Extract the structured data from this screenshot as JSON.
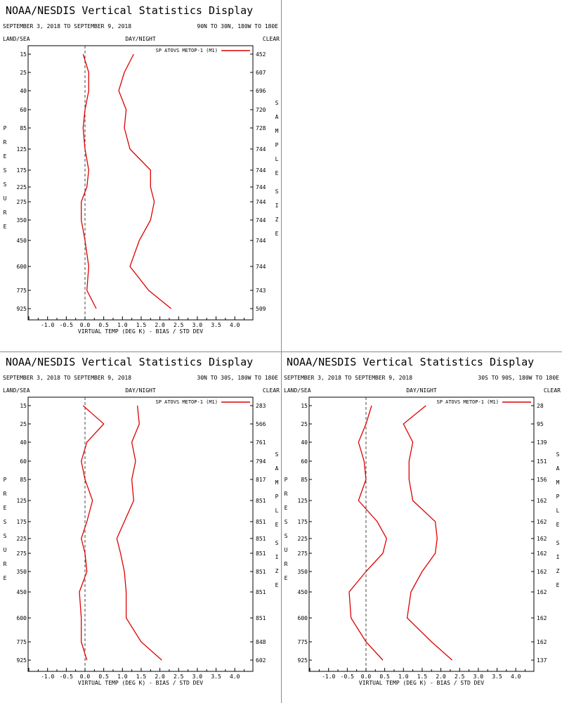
{
  "panels": [
    {
      "id": "nh",
      "title": "NOAA/NESDIS Vertical Statistics Display",
      "date_range": "SEPTEMBER 3, 2018 TO SEPTEMBER 9, 2018",
      "region": "90N TO 30N, 180W TO 180E",
      "land_sea": "LAND/SEA",
      "day_night": "DAY/NIGHT",
      "clear": "CLEAR",
      "y_axis_title": "PRESSURE",
      "right_axis_title_1": "SAMPLE",
      "right_axis_title_2": "SIZE"
    },
    {
      "id": "tr",
      "title": "NOAA/NESDIS Vertical Statistics Display",
      "date_range": "SEPTEMBER 3, 2018 TO SEPTEMBER 9, 2018",
      "region": "30N TO 30S, 180W TO 180E",
      "land_sea": "LAND/SEA",
      "day_night": "DAY/NIGHT",
      "clear": "CLEAR",
      "y_axis_title": "PRESSURE",
      "right_axis_title_1": "SAMPLE",
      "right_axis_title_2": "SIZE"
    },
    {
      "id": "sh",
      "title": "NOAA/NESDIS Vertical Statistics Display",
      "date_range": "SEPTEMBER 3, 2018 TO SEPTEMBER 9, 2018",
      "region": "30S TO 90S, 180W TO 180E",
      "land_sea": "LAND/SEA",
      "day_night": "DAY/NIGHT",
      "clear": "CLEAR",
      "y_axis_title": "PRESSURE",
      "right_axis_title_1": "SAMPLE",
      "right_axis_title_2": "SIZE"
    }
  ],
  "chart_data": [
    {
      "type": "line",
      "xlabel": "VIRTUAL TEMP (DEG K) - BIAS / STD DEV",
      "ylabel": "PRESSURE",
      "xlim": [
        -1.5,
        4.5
      ],
      "x_ticks": [
        "-1.0",
        "-0.5",
        "0.0",
        "0.5",
        "1.0",
        "1.5",
        "2.0",
        "2.5",
        "3.0",
        "3.5",
        "4.0"
      ],
      "pressure_levels": [
        "15",
        "25",
        "40",
        "60",
        "85",
        "125",
        "175",
        "225",
        "275",
        "350",
        "450",
        "600",
        "775",
        "925"
      ],
      "sample_size": [
        "452",
        "607",
        "696",
        "720",
        "728",
        "744",
        "744",
        "744",
        "744",
        "744",
        "744",
        "744",
        "743",
        "509"
      ],
      "legend": "SP ATOVS METOP-1 (M1)",
      "grid": false,
      "line_color": "#dd0000",
      "series": [
        {
          "name": "SP ATOVS METOP-1 (M1)",
          "values": [
            -0.05,
            0.1,
            0.1,
            0.0,
            -0.05,
            0.0,
            0.1,
            0.05,
            -0.1,
            -0.1,
            0.0,
            0.1,
            0.05,
            0.3
          ]
        },
        {
          "values": [
            1.3,
            1.05,
            0.9,
            1.1,
            1.05,
            1.2,
            1.75,
            1.75,
            1.85,
            1.75,
            1.45,
            1.2,
            1.7,
            2.3
          ]
        }
      ]
    },
    {
      "type": "line",
      "xlabel": "VIRTUAL TEMP (DEG K) - BIAS / STD DEV",
      "ylabel": "PRESSURE",
      "xlim": [
        -1.5,
        4.5
      ],
      "x_ticks": [
        "-1.0",
        "-0.5",
        "0.0",
        "0.5",
        "1.0",
        "1.5",
        "2.0",
        "2.5",
        "3.0",
        "3.5",
        "4.0"
      ],
      "pressure_levels": [
        "15",
        "25",
        "40",
        "60",
        "85",
        "125",
        "175",
        "225",
        "275",
        "350",
        "450",
        "600",
        "775",
        "925"
      ],
      "sample_size": [
        "283",
        "566",
        "761",
        "794",
        "817",
        "851",
        "851",
        "851",
        "851",
        "851",
        "851",
        "851",
        "848",
        "602"
      ],
      "legend": "SP ATOVS METOP-1 (M1)",
      "grid": false,
      "line_color": "#dd0000",
      "series": [
        {
          "name": "SP ATOVS METOP-1 (M1)",
          "values": [
            -0.05,
            0.5,
            0.05,
            -0.1,
            0.0,
            0.2,
            0.05,
            -0.1,
            0.0,
            0.05,
            -0.15,
            -0.1,
            -0.1,
            0.05
          ]
        },
        {
          "values": [
            1.4,
            1.45,
            1.25,
            1.35,
            1.25,
            1.3,
            1.05,
            0.85,
            0.95,
            1.05,
            1.1,
            1.1,
            1.5,
            2.05
          ]
        }
      ]
    },
    {
      "type": "line",
      "xlabel": "VIRTUAL TEMP (DEG K) - BIAS / STD DEV",
      "ylabel": "PRESSURE",
      "xlim": [
        -1.5,
        4.5
      ],
      "x_ticks": [
        "-1.0",
        "-0.5",
        "0.0",
        "0.5",
        "1.0",
        "1.5",
        "2.0",
        "2.5",
        "3.0",
        "3.5",
        "4.0"
      ],
      "pressure_levels": [
        "15",
        "25",
        "40",
        "60",
        "85",
        "125",
        "175",
        "225",
        "275",
        "350",
        "450",
        "600",
        "775",
        "925"
      ],
      "sample_size": [
        "28",
        "95",
        "139",
        "151",
        "156",
        "162",
        "162",
        "162",
        "162",
        "162",
        "162",
        "162",
        "162",
        "137"
      ],
      "legend": "SP ATOVS METOP-1 (M1)",
      "grid": false,
      "line_color": "#dd0000",
      "series": [
        {
          "name": "SP ATOVS METOP-1 (M1)",
          "values": [
            0.15,
            0.0,
            -0.2,
            -0.05,
            0.0,
            -0.2,
            0.3,
            0.55,
            0.45,
            0.0,
            -0.45,
            -0.4,
            0.0,
            0.45
          ]
        },
        {
          "values": [
            1.6,
            1.0,
            1.25,
            1.15,
            1.15,
            1.25,
            1.85,
            1.9,
            1.85,
            1.5,
            1.2,
            1.1,
            1.75,
            2.3
          ]
        }
      ]
    }
  ]
}
